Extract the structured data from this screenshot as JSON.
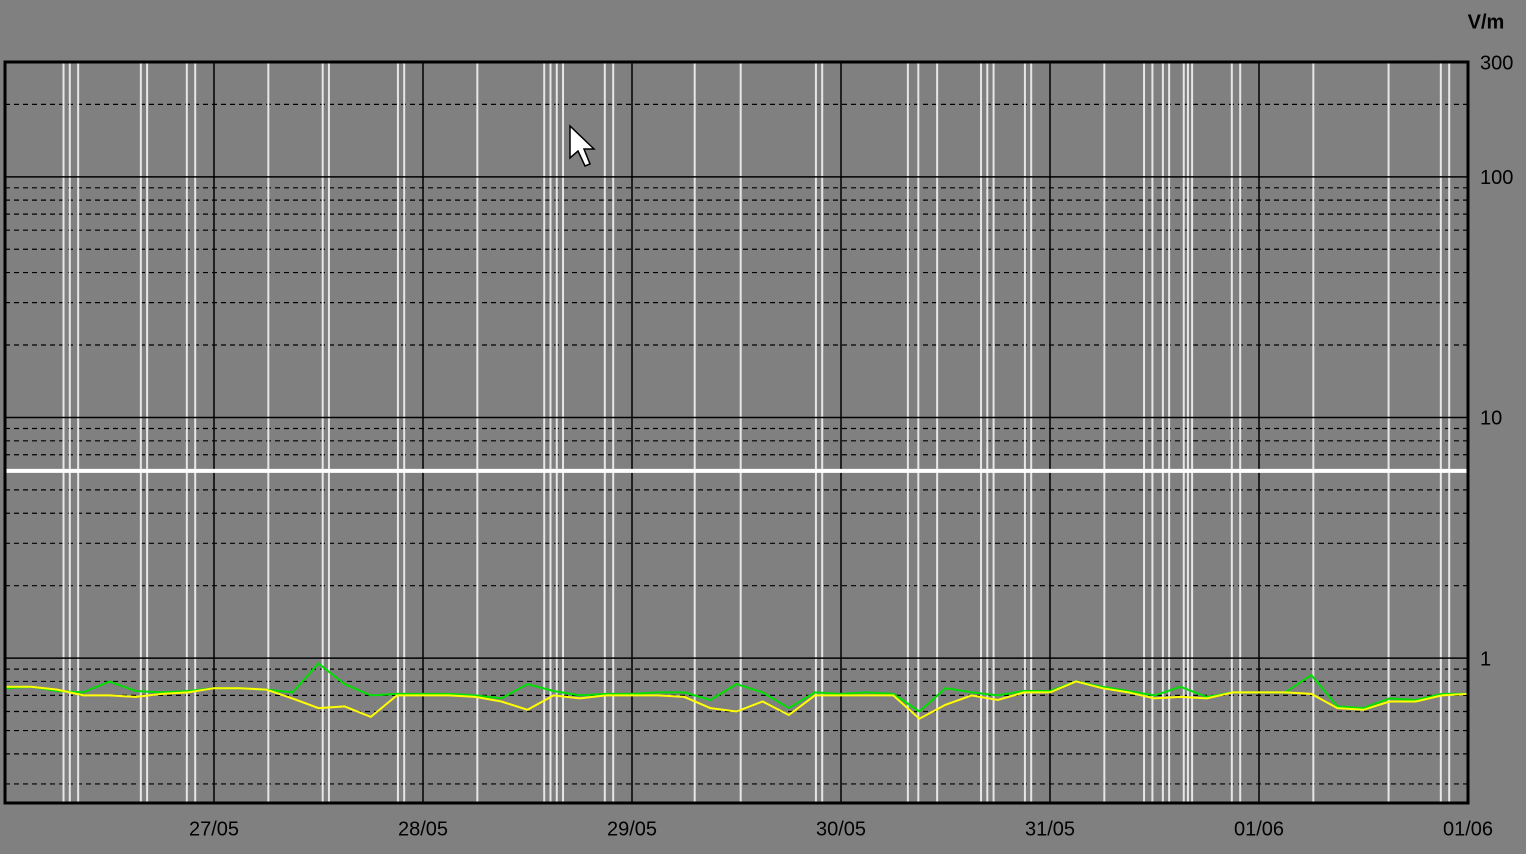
{
  "chart_data": {
    "type": "line",
    "unit_label": "V/m",
    "log_scale": true,
    "xlim": [
      0,
      7
    ],
    "xticks": [
      {
        "value": 1,
        "label": "27/05"
      },
      {
        "value": 2,
        "label": "28/05"
      },
      {
        "value": 3,
        "label": "29/05"
      },
      {
        "value": 4,
        "label": "30/05"
      },
      {
        "value": 5,
        "label": "31/05"
      },
      {
        "value": 6,
        "label": "01/06"
      },
      {
        "value": 7,
        "label": "01/06"
      }
    ],
    "ylim": [
      0.25,
      300
    ],
    "yticks": [
      1,
      10,
      100,
      300
    ],
    "yminor": [
      0.3,
      0.4,
      0.5,
      0.6,
      0.7,
      0.8,
      0.9,
      2,
      3,
      4,
      5,
      6,
      7,
      8,
      9,
      20,
      30,
      40,
      50,
      60,
      70,
      80,
      90,
      200
    ],
    "reference_line": {
      "value": 6,
      "color": "#ffffff"
    },
    "marker_lines_x": [
      0.28,
      0.31,
      0.35,
      0.65,
      0.68,
      0.87,
      0.91,
      1.26,
      1.52,
      1.55,
      1.88,
      1.91,
      2.26,
      2.58,
      2.61,
      2.64,
      2.67,
      2.87,
      2.91,
      3.3,
      3.52,
      3.88,
      3.91,
      4.32,
      4.37,
      4.46,
      4.67,
      4.7,
      4.73,
      4.88,
      4.91,
      5.26,
      5.45,
      5.49,
      5.54,
      5.57,
      5.64,
      5.66,
      5.68,
      5.87,
      5.91,
      6.26,
      6.62,
      6.87,
      6.91
    ],
    "x": [
      0,
      0.125,
      0.25,
      0.375,
      0.5,
      0.625,
      0.75,
      0.875,
      1,
      1.125,
      1.25,
      1.375,
      1.5,
      1.625,
      1.75,
      1.875,
      2,
      2.125,
      2.25,
      2.375,
      2.5,
      2.625,
      2.75,
      2.875,
      3,
      3.125,
      3.25,
      3.375,
      3.5,
      3.625,
      3.75,
      3.875,
      4,
      4.125,
      4.25,
      4.375,
      4.5,
      4.625,
      4.75,
      4.875,
      5,
      5.125,
      5.25,
      5.375,
      5.5,
      5.625,
      5.75,
      5.875,
      6,
      6.125,
      6.25,
      6.375,
      6.5,
      6.625,
      6.75,
      6.875,
      7
    ],
    "series": [
      {
        "color": "#00e000",
        "values": [
          0.75,
          0.76,
          0.73,
          0.72,
          0.8,
          0.73,
          0.72,
          0.73,
          0.75,
          0.75,
          0.74,
          0.72,
          0.95,
          0.78,
          0.7,
          0.71,
          0.71,
          0.71,
          0.7,
          0.68,
          0.78,
          0.73,
          0.7,
          0.71,
          0.71,
          0.72,
          0.72,
          0.67,
          0.78,
          0.72,
          0.62,
          0.72,
          0.71,
          0.72,
          0.71,
          0.6,
          0.75,
          0.72,
          0.7,
          0.73,
          0.73,
          0.8,
          0.76,
          0.73,
          0.7,
          0.76,
          0.69,
          0.72,
          0.72,
          0.72,
          0.85,
          0.63,
          0.62,
          0.68,
          0.67,
          0.71,
          0.71
        ]
      },
      {
        "color": "#ffff00",
        "values": [
          0.76,
          0.76,
          0.74,
          0.7,
          0.7,
          0.69,
          0.71,
          0.72,
          0.75,
          0.75,
          0.74,
          0.68,
          0.62,
          0.63,
          0.57,
          0.7,
          0.7,
          0.7,
          0.69,
          0.66,
          0.61,
          0.7,
          0.68,
          0.7,
          0.7,
          0.7,
          0.69,
          0.62,
          0.6,
          0.66,
          0.58,
          0.7,
          0.7,
          0.7,
          0.7,
          0.56,
          0.64,
          0.7,
          0.67,
          0.72,
          0.72,
          0.8,
          0.75,
          0.72,
          0.68,
          0.69,
          0.68,
          0.72,
          0.72,
          0.72,
          0.71,
          0.62,
          0.61,
          0.66,
          0.66,
          0.7,
          0.71
        ]
      }
    ]
  }
}
